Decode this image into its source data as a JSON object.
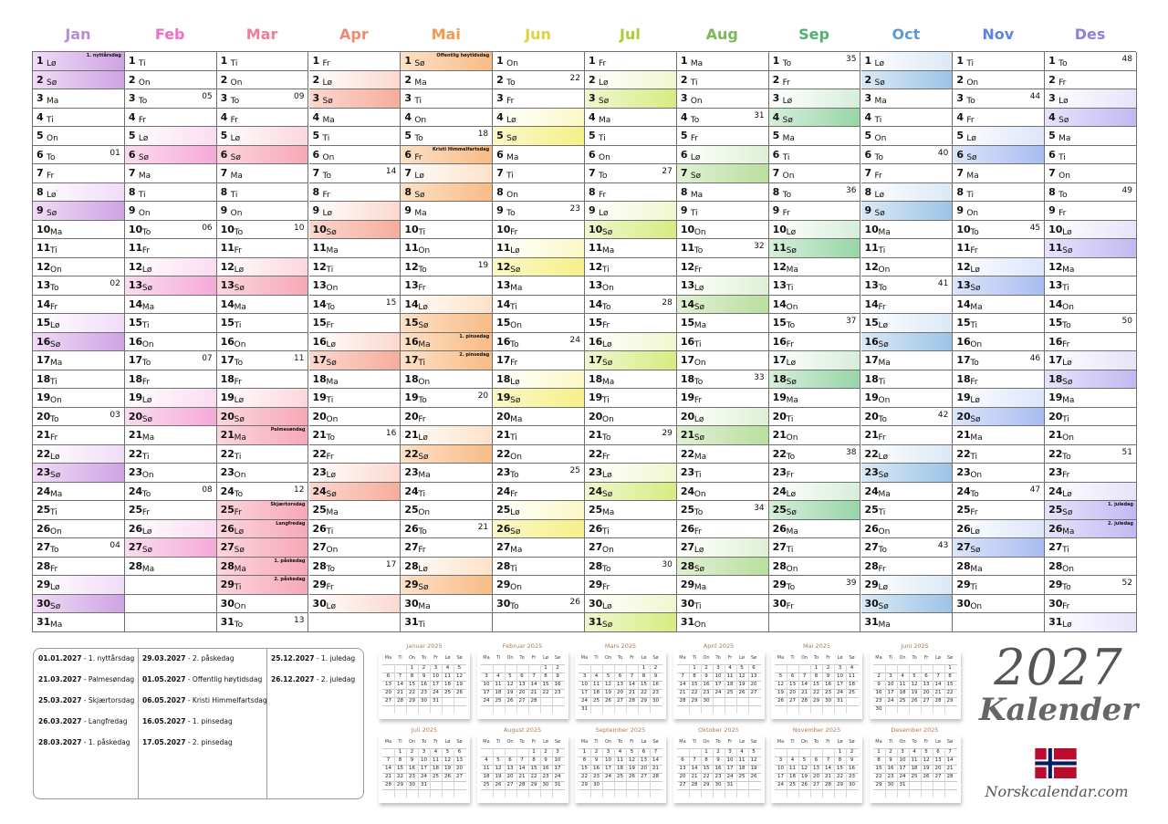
{
  "year": "2027",
  "label": "Kalender",
  "site": "Norskcalendar.com",
  "months": [
    {
      "name": "Jan",
      "color": "#c58be0",
      "tint": "#f0dcf7",
      "strong": "#cfa3e3",
      "start": 5,
      "days": 31,
      "hdr": "#b98ad6"
    },
    {
      "name": "Feb",
      "color": "#f07ac7",
      "tint": "#fbdcef",
      "strong": "#f6a9d8",
      "start": 1,
      "days": 28,
      "hdr": "#f06fc0"
    },
    {
      "name": "Mar",
      "color": "#f38aa6",
      "tint": "#fbd6dd",
      "strong": "#f7a8b9",
      "start": 1,
      "days": 31,
      "hdr": "#ef7d9c"
    },
    {
      "name": "Apr",
      "color": "#f08e7c",
      "tint": "#fbd8cf",
      "strong": "#f6ad9c",
      "start": 4,
      "days": 30,
      "hdr": "#ee8a72"
    },
    {
      "name": "Mai",
      "color": "#f5a15f",
      "tint": "#fde1c7",
      "strong": "#f8bb85",
      "start": 6,
      "days": 31,
      "hdr": "#f29b4f"
    },
    {
      "name": "Jun",
      "color": "#e3e04b",
      "tint": "#fbf8c8",
      "strong": "#f5f08a",
      "start": 2,
      "days": 30,
      "hdr": "#d9d43a"
    },
    {
      "name": "Jul",
      "color": "#b8d94b",
      "tint": "#eff7cf",
      "strong": "#d6ec82",
      "start": 4,
      "days": 31,
      "hdr": "#a9cf35"
    },
    {
      "name": "Aug",
      "color": "#8cc56f",
      "tint": "#e0f0d4",
      "strong": "#b9df9e",
      "start": 0,
      "days": 31,
      "hdr": "#7cb85a"
    },
    {
      "name": "Sep",
      "color": "#5fbd7a",
      "tint": "#d7eedb",
      "strong": "#98d6a7",
      "start": 3,
      "days": 30,
      "hdr": "#4db26a"
    },
    {
      "name": "Oct",
      "color": "#6aa5d6",
      "tint": "#dbe9f6",
      "strong": "#9dc4e6",
      "start": 5,
      "days": 31,
      "hdr": "#5b9bd3"
    },
    {
      "name": "Nov",
      "color": "#6f8fe6",
      "tint": "#dde5fa",
      "strong": "#a9bcf1",
      "start": 1,
      "days": 30,
      "hdr": "#5e84e0"
    },
    {
      "name": "Des",
      "color": "#9b8ee8",
      "tint": "#e7e3fa",
      "strong": "#c3b9f3",
      "start": 3,
      "days": 31,
      "hdr": "#8d7fdf"
    }
  ],
  "weekdays": [
    "Ma",
    "Ti",
    "On",
    "To",
    "Fr",
    "Lø",
    "Sø"
  ],
  "calendar_holidays": [
    {
      "m": 0,
      "d": 1,
      "t": "1. nyttårsdag"
    },
    {
      "m": 2,
      "d": 21,
      "t": "Palmesøndag"
    },
    {
      "m": 2,
      "d": 25,
      "t": "Skjærtorsdag"
    },
    {
      "m": 2,
      "d": 26,
      "t": "Langfredag"
    },
    {
      "m": 2,
      "d": 28,
      "t": "1. påskedag"
    },
    {
      "m": 2,
      "d": 29,
      "t": "2. påskedag"
    },
    {
      "m": 4,
      "d": 1,
      "t": "Offentlig høytidsdag"
    },
    {
      "m": 4,
      "d": 6,
      "t": "Kristi Himmelfartsdag"
    },
    {
      "m": 4,
      "d": 16,
      "t": "1. pinsedag"
    },
    {
      "m": 4,
      "d": 17,
      "t": "2. pinsedag"
    },
    {
      "m": 11,
      "d": 25,
      "t": "1. juledag"
    },
    {
      "m": 11,
      "d": 26,
      "t": "2. juledag"
    }
  ],
  "holiday_list": [
    [
      {
        "date": "01.01.2027",
        "name": "1. nyttårsdag"
      },
      {
        "date": "21.03.2027",
        "name": "Palmesøndag"
      },
      {
        "date": "25.03.2027",
        "name": "Skjærtorsdag"
      },
      {
        "date": "26.03.2027",
        "name": "Langfredag"
      },
      {
        "date": "28.03.2027",
        "name": "1. påskedag"
      }
    ],
    [
      {
        "date": "29.03.2027",
        "name": "2. påskedag"
      },
      {
        "date": "01.05.2027",
        "name": "Offentlig høytidsdag"
      },
      {
        "date": "06.05.2027",
        "name": "Kristi Himmelfartsdag"
      },
      {
        "date": "16.05.2027",
        "name": "1. pinsedag"
      },
      {
        "date": "17.05.2027",
        "name": "2. pinsedag"
      }
    ],
    [
      {
        "date": "25.12.2027",
        "name": "1. juledag"
      },
      {
        "date": "26.12.2027",
        "name": "2. juledag"
      }
    ]
  ],
  "mini_weekdays": [
    "Ma",
    "Ti",
    "On",
    "To",
    "Fr",
    "Lø",
    "Sø"
  ],
  "mini_months": [
    {
      "title": "Januar 2025",
      "start": 2,
      "days": 31
    },
    {
      "title": "Februar 2025",
      "start": 5,
      "days": 28
    },
    {
      "title": "Mars 2025",
      "start": 5,
      "days": 31
    },
    {
      "title": "April 2025",
      "start": 1,
      "days": 30
    },
    {
      "title": "Mai 2025",
      "start": 3,
      "days": 31
    },
    {
      "title": "Juni 2025",
      "start": 6,
      "days": 30
    },
    {
      "title": "Juli 2025",
      "start": 1,
      "days": 31
    },
    {
      "title": "August 2025",
      "start": 4,
      "days": 31
    },
    {
      "title": "September 2025",
      "start": 0,
      "days": 30
    },
    {
      "title": "Oktober 2025",
      "start": 2,
      "days": 31
    },
    {
      "title": "November 2025",
      "start": 5,
      "days": 30
    },
    {
      "title": "Desember 2025",
      "start": 0,
      "days": 31
    }
  ]
}
